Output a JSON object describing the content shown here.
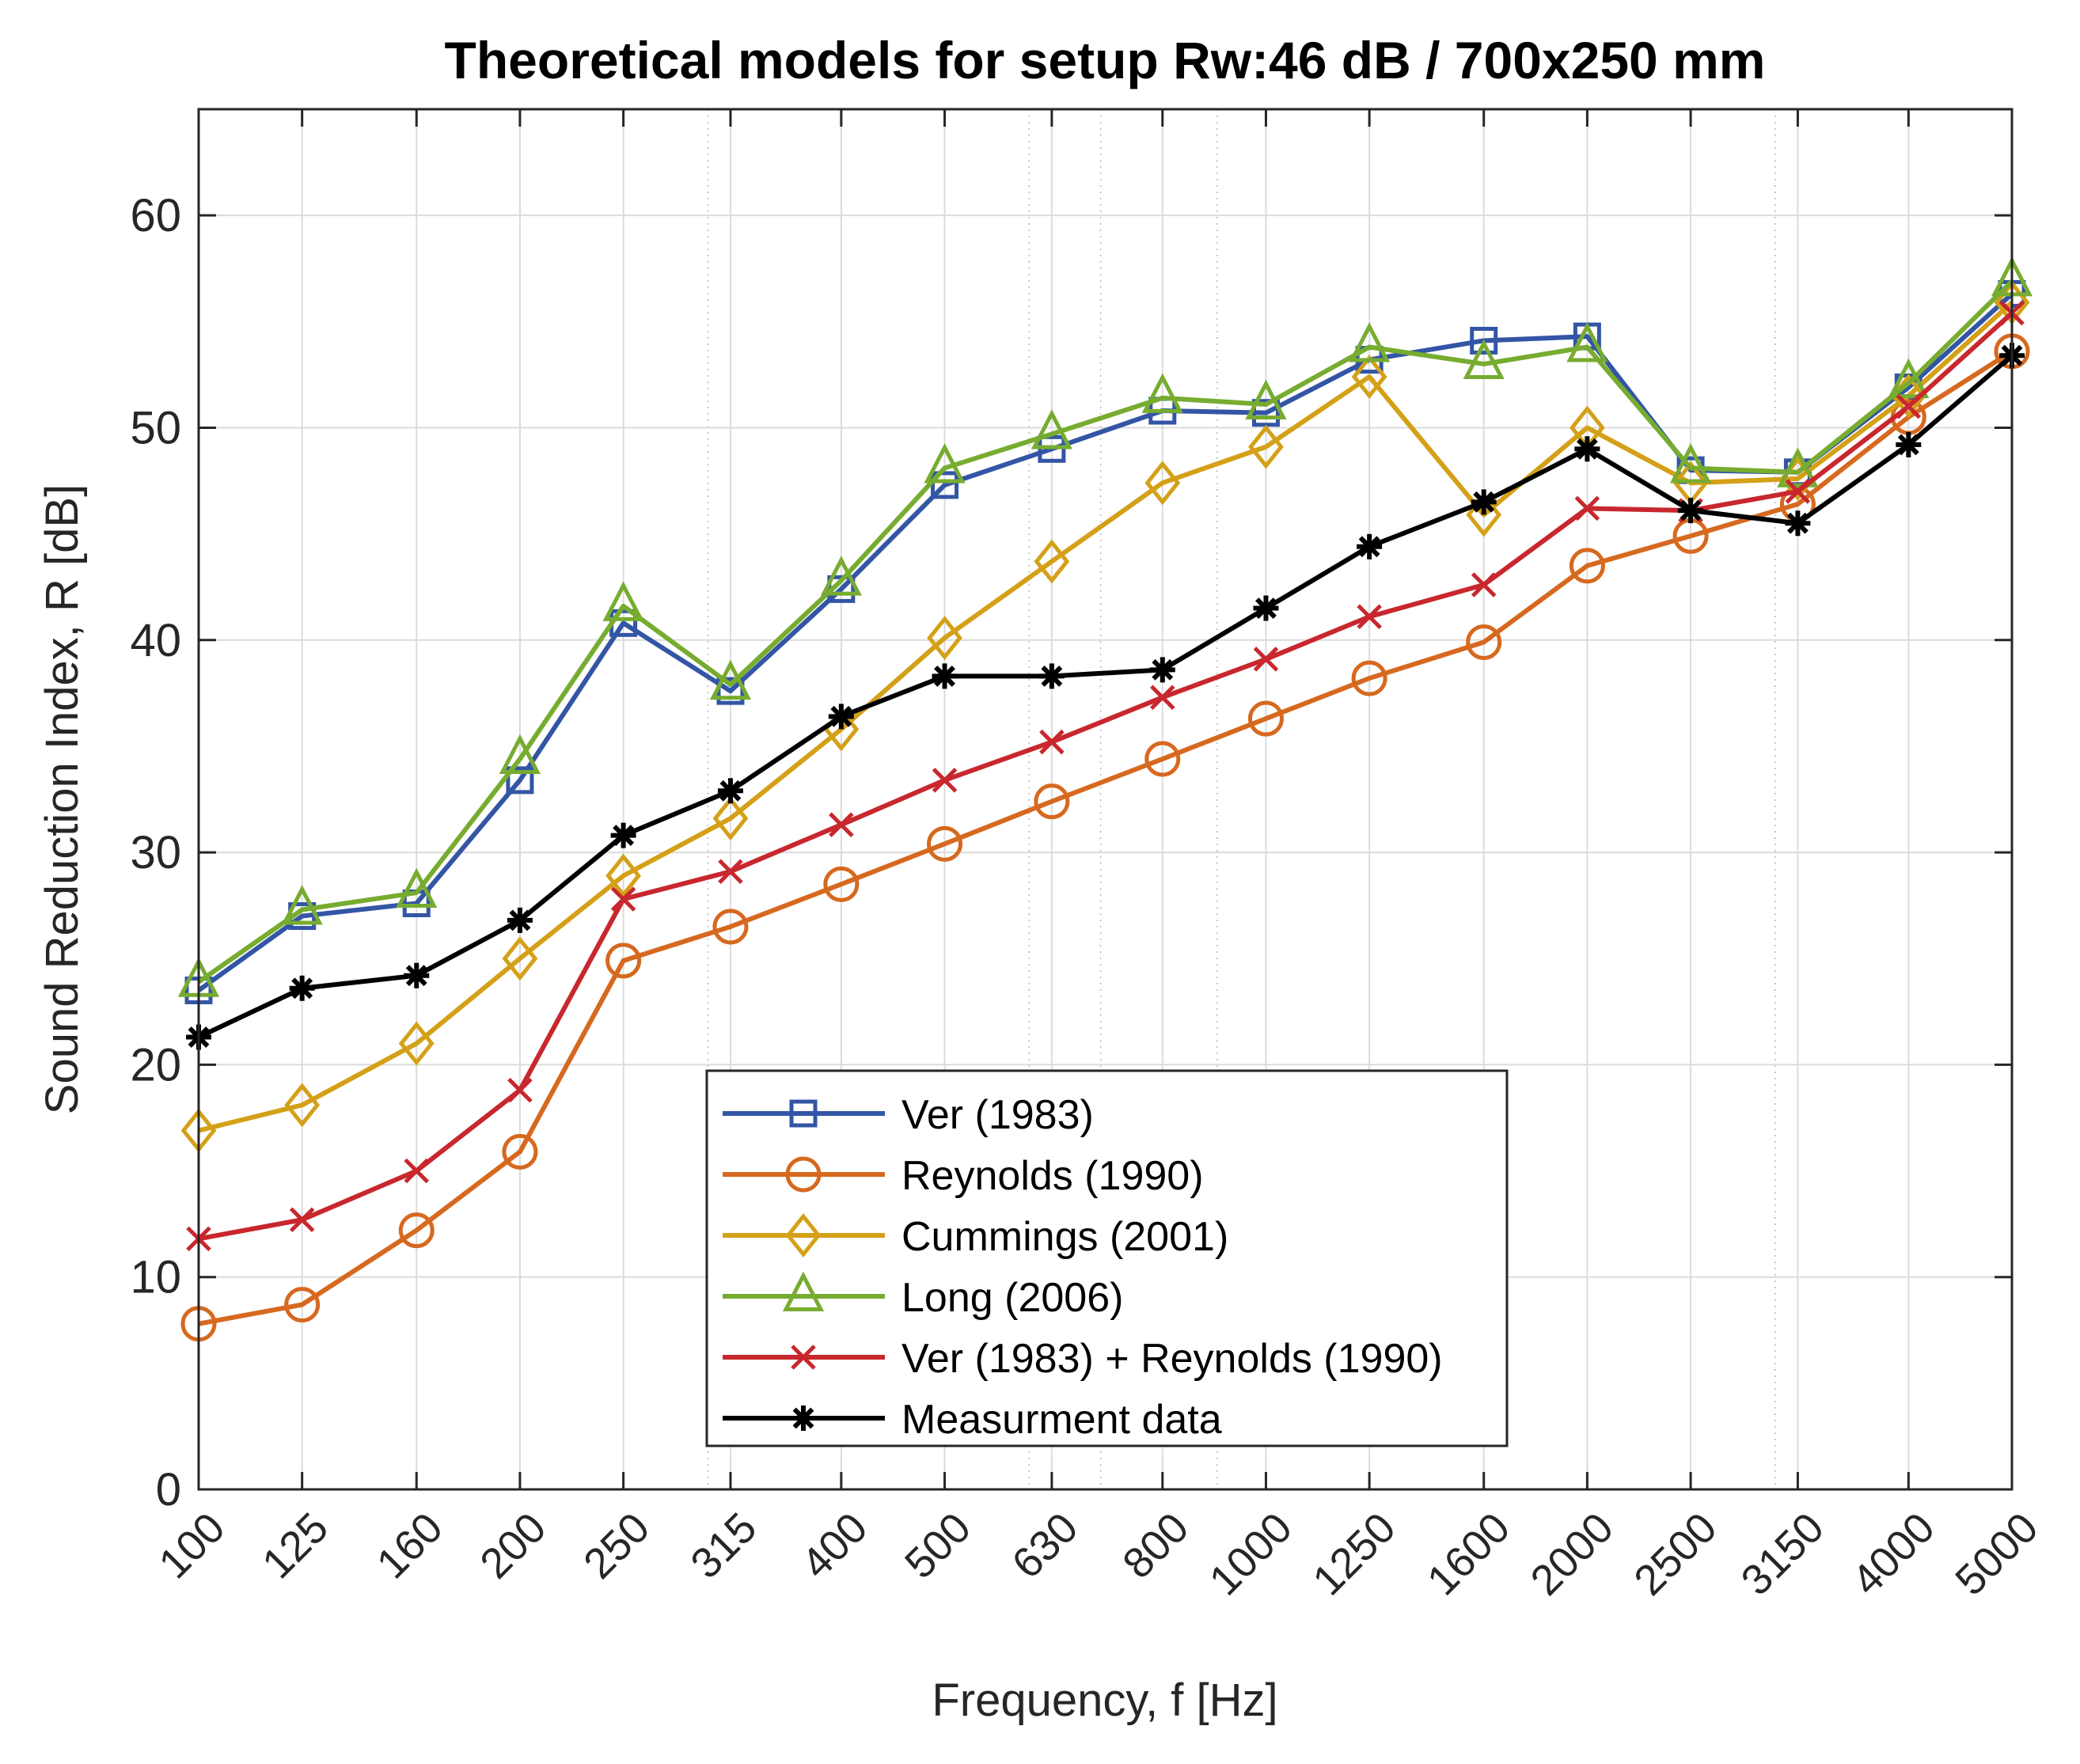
{
  "chart_data": {
    "type": "line",
    "title": "Theoretical models for setup Rw:46 dB / 700x250 mm",
    "xlabel": "Frequency, f [Hz]",
    "ylabel": "Sound Reduction Index, R [dB]",
    "x_scale": "log",
    "xlim": [
      100,
      5000
    ],
    "ylim": [
      0,
      65
    ],
    "yticks": [
      0,
      10,
      20,
      30,
      40,
      50,
      60
    ],
    "categories": [
      "100",
      "125",
      "160",
      "200",
      "250",
      "315",
      "400",
      "500",
      "630",
      "800",
      "1000",
      "1250",
      "1600",
      "2000",
      "2500",
      "3150",
      "4000",
      "5000"
    ],
    "x": [
      100,
      125,
      160,
      200,
      250,
      315,
      400,
      500,
      630,
      800,
      1000,
      1250,
      1600,
      2000,
      2500,
      3150,
      4000,
      5000
    ],
    "grid": true,
    "legend_position": "bottom-center",
    "series": [
      {
        "name": "Ver (1983)",
        "color": "#3355a5",
        "marker": "square",
        "values": [
          23.5,
          27.0,
          27.6,
          33.4,
          40.8,
          37.6,
          42.4,
          47.3,
          49.0,
          50.8,
          50.7,
          53.2,
          54.1,
          54.3,
          48.0,
          47.9,
          51.9,
          56.3
        ]
      },
      {
        "name": "Reynolds (1990)",
        "color": "#d6691f",
        "marker": "circle",
        "values": [
          7.8,
          8.7,
          12.2,
          15.9,
          24.9,
          26.5,
          28.5,
          30.4,
          32.4,
          34.4,
          36.3,
          38.2,
          39.9,
          43.5,
          44.9,
          46.4,
          50.5,
          53.6
        ]
      },
      {
        "name": "Cummings (2001)",
        "color": "#d4a017",
        "marker": "diamond",
        "values": [
          16.9,
          18.1,
          21.0,
          25.0,
          28.9,
          31.6,
          35.8,
          40.1,
          43.7,
          47.4,
          49.1,
          52.4,
          45.9,
          50.0,
          47.4,
          47.6,
          51.5,
          55.9
        ]
      },
      {
        "name": "Long (2006)",
        "color": "#77ac30",
        "marker": "triangle",
        "values": [
          23.9,
          27.3,
          28.1,
          34.4,
          41.6,
          37.9,
          42.8,
          48.1,
          49.7,
          51.4,
          51.1,
          53.8,
          53.0,
          53.8,
          48.1,
          47.9,
          52.1,
          56.9
        ]
      },
      {
        "name": "Ver (1983) + Reynolds (1990)",
        "color": "#c8272d",
        "marker": "x",
        "values": [
          11.8,
          12.7,
          15.0,
          18.8,
          27.8,
          29.1,
          31.3,
          33.4,
          35.2,
          37.3,
          39.1,
          41.1,
          42.6,
          46.2,
          46.1,
          47.0,
          51.0,
          55.4
        ]
      },
      {
        "name": "Measurment data",
        "color": "#000000",
        "marker": "asterisk",
        "values": [
          21.3,
          23.6,
          24.2,
          26.8,
          30.8,
          32.9,
          36.4,
          38.3,
          38.3,
          38.6,
          41.5,
          44.4,
          46.5,
          49.0,
          46.1,
          45.5,
          49.2,
          53.4
        ]
      }
    ]
  }
}
